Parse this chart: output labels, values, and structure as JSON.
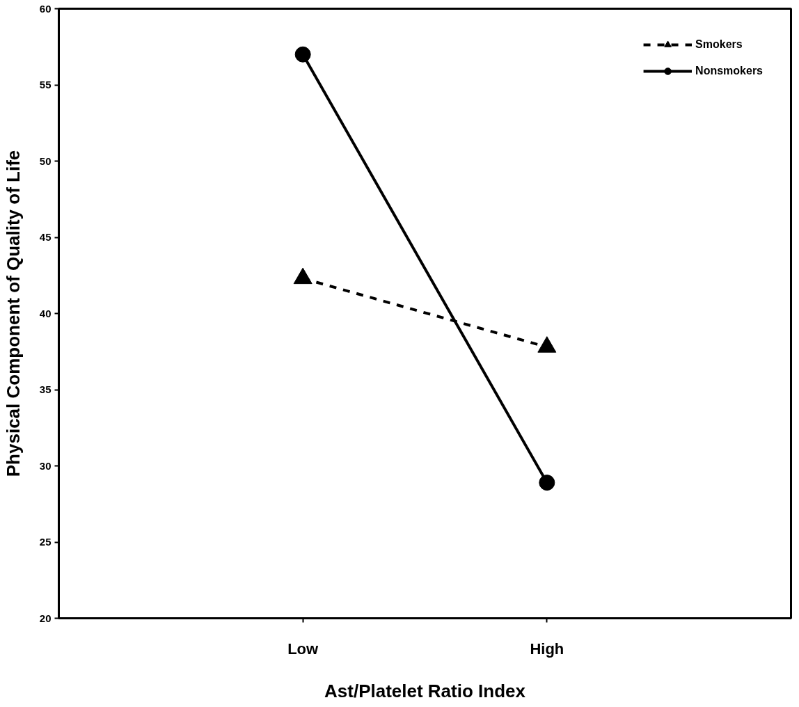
{
  "chart_data": {
    "type": "line",
    "xlabel": "Ast/Platelet Ratio Index",
    "ylabel": "Physical Component of Quality of Life",
    "categories": [
      "Low",
      "High"
    ],
    "series": [
      {
        "name": "Smokers",
        "color": "#000000",
        "values": [
          42.3,
          37.8
        ],
        "marker": "triangle",
        "line_style": "dashed"
      },
      {
        "name": "Nonsmokers",
        "color": "#000000",
        "values": [
          57.0,
          28.9
        ],
        "marker": "circle",
        "line_style": "solid"
      }
    ],
    "ylim": [
      20,
      60
    ],
    "yticks": [
      20,
      25,
      30,
      35,
      40,
      45,
      50,
      55,
      60
    ],
    "grid": false,
    "legend": "top right"
  }
}
